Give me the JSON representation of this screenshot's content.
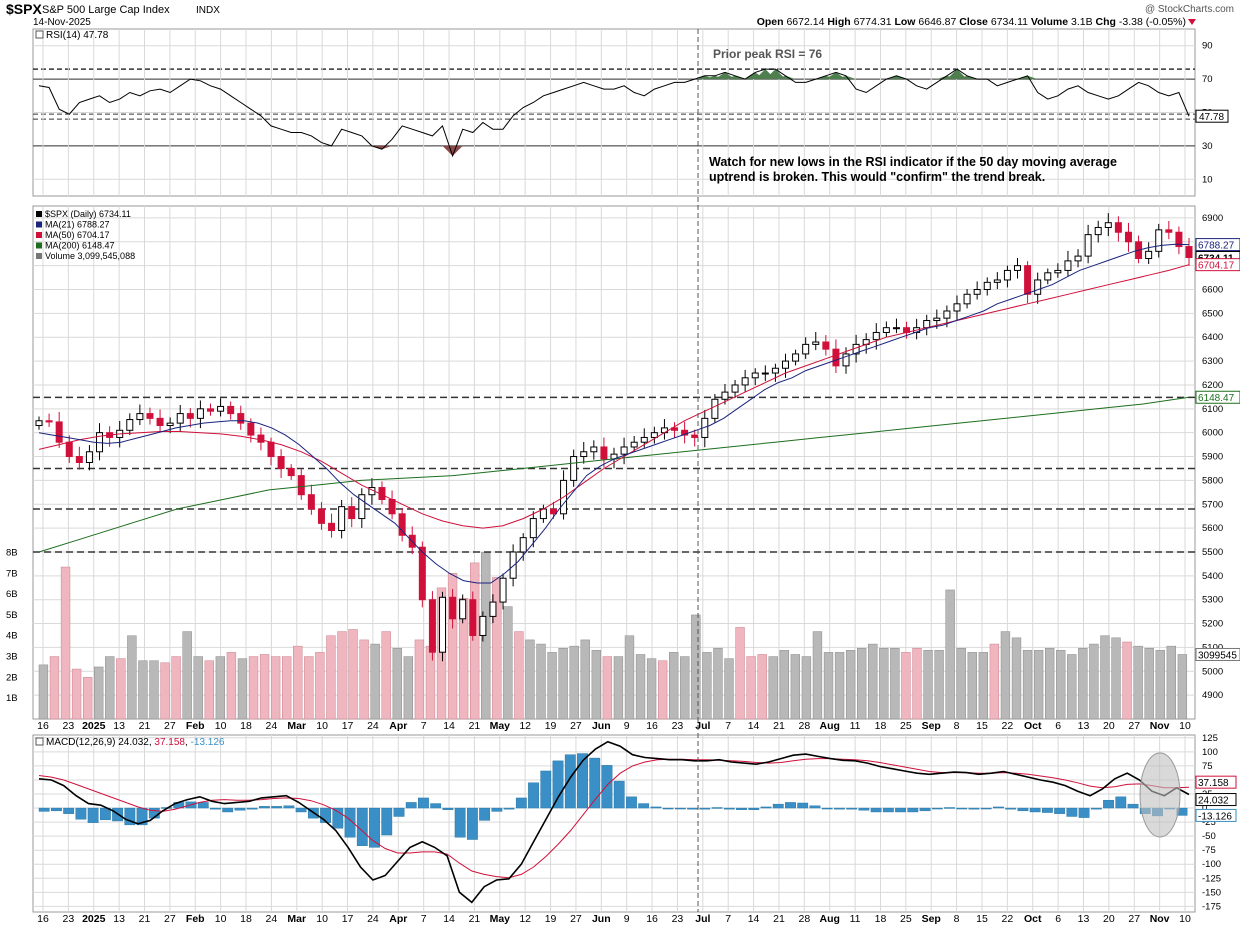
{
  "header": {
    "symbol": "$SPX",
    "name": "S&P 500 Large Cap Index",
    "exchange": "INDX",
    "date": "14-Nov-2025",
    "watermark": "@ StockCharts.com",
    "open_label": "Open",
    "open": "6672.14",
    "high_label": "High",
    "high": "6774.31",
    "low_label": "Low",
    "low": "6646.87",
    "close_label": "Close",
    "close": "6734.11",
    "volume_label": "Volume",
    "volume": "3.1B",
    "chg_label": "Chg",
    "chg": "-3.38 (-0.05%)"
  },
  "annotations": {
    "prior_peak": "Prior peak RSI = 76",
    "watch_line1": "Watch for new lows in the RSI indicator if the 50 day moving average",
    "watch_line2": "uptrend is broken. This would \"confirm\" the trend break."
  },
  "colors": {
    "grid": "#d9d9d9",
    "up": "#000000",
    "down": "#d0103a",
    "ma21": "#1a237e",
    "ma50": "#d0103a",
    "ma200": "#1e6e1e",
    "macd_hist": "#3a8fc6",
    "rsi_fill": "#4f7f4f",
    "vol_gray": "#b8b8b8",
    "vol_red": "#f0b6bf"
  },
  "chart_data": [
    {
      "type": "line",
      "title": "RSI(14) 47.78",
      "legend": "RSI(14)",
      "legend_value": "47.78",
      "last_label": "47.78",
      "ylim": [
        0,
        100
      ],
      "yticks": [
        "90",
        "70",
        "50",
        "30",
        "10"
      ],
      "levels": [
        76,
        70,
        49,
        46,
        30
      ],
      "series": [
        {
          "name": "RSI(14)",
          "values": [
            66,
            65,
            52,
            49,
            56,
            58,
            60,
            56,
            58,
            62,
            60,
            63,
            64,
            62,
            66,
            70,
            69,
            66,
            64,
            60,
            56,
            52,
            48,
            42,
            40,
            38,
            38,
            36,
            32,
            30,
            40,
            38,
            36,
            30,
            28,
            34,
            42,
            40,
            38,
            36,
            42,
            24,
            40,
            38,
            44,
            40,
            40,
            48,
            53,
            56,
            60,
            62,
            64,
            66,
            68,
            66,
            64,
            64,
            66,
            62,
            60,
            64,
            66,
            68,
            68,
            70,
            72,
            72,
            74,
            72,
            70,
            74,
            76,
            76,
            72,
            68,
            68,
            70,
            72,
            74,
            72,
            64,
            62,
            66,
            70,
            72,
            70,
            66,
            64,
            68,
            72,
            76,
            72,
            70,
            70,
            66,
            68,
            70,
            72,
            62,
            58,
            60,
            64,
            66,
            62,
            60,
            58,
            60,
            64,
            68,
            66,
            62,
            60,
            62,
            47.78
          ]
        }
      ]
    },
    {
      "type": "candlestick",
      "title": "$SPX (Daily) 6734.11",
      "legend": [
        {
          "name": "$SPX (Daily)",
          "value": "6734.11"
        },
        {
          "name": "MA(21)",
          "value": "6788.27"
        },
        {
          "name": "MA(50)",
          "value": "6704.17"
        },
        {
          "name": "MA(200)",
          "value": "6148.47"
        },
        {
          "name": "Volume",
          "value": "3,099,545,088"
        }
      ],
      "ylim": [
        4800,
        6950
      ],
      "yticks": [
        "6900",
        "6800",
        "6700",
        "6600",
        "6500",
        "6400",
        "6300",
        "6200",
        "6100",
        "6000",
        "5900",
        "5800",
        "5700",
        "5600",
        "5500",
        "5400",
        "5300",
        "5200",
        "5100",
        "5000",
        "4900"
      ],
      "volume_ticks": [
        "8B",
        "7B",
        "6B",
        "5B",
        "4B",
        "3B",
        "2B",
        "1B"
      ],
      "support_levels": [
        6148,
        5850,
        5680,
        5500
      ],
      "right_labels": {
        "ma21": "6788.27",
        "close": "6734.11",
        "ma50": "6704.17",
        "ma200": "6148.47",
        "volume": "3099545"
      },
      "series": [
        {
          "name": "Close",
          "values": [
            6050,
            6045,
            5960,
            5900,
            5875,
            5920,
            6000,
            5980,
            6010,
            6055,
            6080,
            6060,
            6030,
            6040,
            6080,
            6060,
            6100,
            6090,
            6110,
            6080,
            6040,
            5990,
            5960,
            5900,
            5850,
            5820,
            5740,
            5680,
            5620,
            5590,
            5690,
            5640,
            5740,
            5770,
            5720,
            5660,
            5570,
            5520,
            5300,
            5080,
            5310,
            5220,
            5300,
            5150,
            5230,
            5290,
            5390,
            5500,
            5560,
            5640,
            5680,
            5660,
            5800,
            5900,
            5920,
            5940,
            5890,
            5910,
            5940,
            5960,
            5980,
            6000,
            6020,
            6010,
            5990,
            5980,
            6060,
            6140,
            6170,
            6200,
            6230,
            6250,
            6250,
            6270,
            6300,
            6330,
            6370,
            6380,
            6350,
            6280,
            6330,
            6370,
            6390,
            6420,
            6440,
            6440,
            6420,
            6440,
            6470,
            6480,
            6510,
            6540,
            6580,
            6600,
            6630,
            6640,
            6680,
            6700,
            6580,
            6640,
            6670,
            6680,
            6720,
            6740,
            6830,
            6860,
            6880,
            6840,
            6800,
            6730,
            6760,
            6850,
            6840,
            6780,
            6734.11
          ]
        },
        {
          "name": "MA(21)",
          "values": [
            6000,
            5990,
            5980,
            5970,
            5960,
            5955,
            5960,
            5975,
            5990,
            6005,
            6020,
            6030,
            6040,
            6045,
            6050,
            6050,
            6040,
            6020,
            5990,
            5950,
            5900,
            5850,
            5790,
            5740,
            5700,
            5660,
            5620,
            5560,
            5500,
            5450,
            5410,
            5380,
            5370,
            5370,
            5410,
            5460,
            5530,
            5600,
            5680,
            5750,
            5820,
            5860,
            5890,
            5910,
            5930,
            5950,
            5970,
            5990,
            6010,
            6030,
            6060,
            6100,
            6140,
            6180,
            6210,
            6230,
            6260,
            6280,
            6300,
            6320,
            6340,
            6360,
            6380,
            6400,
            6420,
            6440,
            6450,
            6470,
            6490,
            6510,
            6540,
            6560,
            6580,
            6600,
            6620,
            6650,
            6680,
            6700,
            6720,
            6740,
            6760,
            6775,
            6785,
            6790,
            6788.27
          ]
        },
        {
          "name": "MA(50)",
          "values": [
            5930,
            5950,
            5970,
            5985,
            5995,
            6000,
            6005,
            6005,
            6000,
            5995,
            5985,
            5970,
            5950,
            5920,
            5880,
            5830,
            5780,
            5740,
            5700,
            5660,
            5630,
            5610,
            5600,
            5610,
            5640,
            5680,
            5730,
            5790,
            5850,
            5900,
            5950,
            6000,
            6050,
            6090,
            6130,
            6170,
            6210,
            6250,
            6280,
            6310,
            6340,
            6370,
            6400,
            6420,
            6440,
            6460,
            6480,
            6500,
            6520,
            6540,
            6560,
            6580,
            6600,
            6620,
            6640,
            6660,
            6680,
            6704.17
          ]
        },
        {
          "name": "MA(200)",
          "values": [
            5500,
            5560,
            5620,
            5680,
            5720,
            5760,
            5780,
            5800,
            5810,
            5820,
            5840,
            5860,
            5880,
            5900,
            5920,
            5940,
            5960,
            5980,
            6000,
            6020,
            6040,
            6060,
            6080,
            6100,
            6120,
            6148.47
          ]
        },
        {
          "name": "Volume (B)",
          "values": [
            2.6,
            3.0,
            7.3,
            2.4,
            2.0,
            2.5,
            3.0,
            2.9,
            4.0,
            2.8,
            2.8,
            2.7,
            3.0,
            4.2,
            3.0,
            2.8,
            3.0,
            3.2,
            2.9,
            3.0,
            3.1,
            3.0,
            3.0,
            3.5,
            3.0,
            3.2,
            4.0,
            4.2,
            4.3,
            3.8,
            3.6,
            4.2,
            3.4,
            3.0,
            3.8,
            3.5,
            6.3,
            7.0,
            5.8,
            7.5,
            8.0,
            6.8,
            5.4,
            4.2,
            3.8,
            3.6,
            3.2,
            3.4,
            3.5,
            3.8,
            3.3,
            3.0,
            3.0,
            4.0,
            3.1,
            2.9,
            2.8,
            3.2,
            3.0,
            5.0,
            3.2,
            3.4,
            2.9,
            4.4,
            3.0,
            3.1,
            3.0,
            3.3,
            3.1,
            3.0,
            4.2,
            3.2,
            3.2,
            3.3,
            3.4,
            3.6,
            3.4,
            3.4,
            3.2,
            3.4,
            3.3,
            3.3,
            6.2,
            3.4,
            3.2,
            3.2,
            3.6,
            4.2,
            3.9,
            3.3,
            3.3,
            3.4,
            3.3,
            3.1,
            3.4,
            3.6,
            4.0,
            3.9,
            3.7,
            3.5,
            3.4,
            3.3,
            3.5,
            3.1
          ]
        }
      ]
    },
    {
      "type": "line",
      "title": "MACD(12,26,9) 24.032, 37.158, -13.126",
      "legend": "MACD(12,26,9)",
      "legend_values": [
        "24.032",
        "37.158",
        "-13.126"
      ],
      "ylim": [
        -185,
        130
      ],
      "yticks": [
        "125",
        "100",
        "75",
        "50",
        "25",
        "0",
        "-25",
        "-50",
        "-75",
        "-100",
        "-125",
        "-150",
        "-175"
      ],
      "right_labels": [
        "37.158",
        "24.032",
        "-13.126"
      ],
      "series": [
        {
          "name": "MACD",
          "values": [
            52,
            50,
            40,
            22,
            8,
            5,
            -5,
            -20,
            -28,
            -22,
            -5,
            8,
            15,
            20,
            12,
            8,
            10,
            12,
            18,
            20,
            22,
            10,
            -5,
            -20,
            -40,
            -70,
            -105,
            -128,
            -120,
            -95,
            -70,
            -60,
            -70,
            -85,
            -150,
            -168,
            -140,
            -128,
            -126,
            -100,
            -60,
            -20,
            20,
            55,
            85,
            105,
            118,
            110,
            95,
            90,
            88,
            86,
            86,
            84,
            84,
            86,
            82,
            80,
            78,
            82,
            88,
            94,
            96,
            92,
            88,
            85,
            84,
            80,
            74,
            70,
            66,
            62,
            60,
            62,
            64,
            63,
            60,
            62,
            65,
            60,
            55,
            50,
            46,
            40,
            30,
            22,
            34,
            52,
            62,
            50,
            30,
            22,
            36,
            24.032
          ]
        },
        {
          "name": "Signal",
          "values": [
            58,
            55,
            50,
            42,
            34,
            26,
            18,
            10,
            2,
            -4,
            -6,
            -2,
            4,
            10,
            14,
            15,
            14,
            14,
            15,
            17,
            18,
            17,
            13,
            6,
            -4,
            -18,
            -38,
            -58,
            -72,
            -80,
            -80,
            -78,
            -78,
            -82,
            -98,
            -112,
            -118,
            -122,
            -124,
            -118,
            -105,
            -86,
            -64,
            -40,
            -12,
            16,
            42,
            62,
            75,
            82,
            86,
            87,
            87,
            86,
            86,
            85,
            84,
            83,
            81,
            80,
            81,
            84,
            87,
            88,
            88,
            87,
            86,
            84,
            81,
            77,
            73,
            69,
            65,
            63,
            63,
            63,
            62,
            62,
            63,
            62,
            60,
            57,
            54,
            50,
            45,
            39,
            36,
            38,
            42,
            43,
            40,
            36,
            36,
            37.158
          ]
        },
        {
          "name": "Histogram",
          "values": [
            -6,
            -5,
            -10,
            -20,
            -26,
            -21,
            -23,
            -30,
            -30,
            -18,
            1,
            10,
            11,
            10,
            -2,
            -7,
            -4,
            -2,
            3,
            3,
            4,
            -7,
            -18,
            -26,
            -36,
            -52,
            -67,
            -70,
            -48,
            -15,
            10,
            18,
            8,
            -3,
            -52,
            -56,
            -22,
            -6,
            -2,
            18,
            45,
            66,
            84,
            95,
            97,
            89,
            76,
            48,
            20,
            8,
            2,
            -1,
            -1,
            -2,
            -2,
            1,
            -2,
            -3,
            -3,
            2,
            7,
            10,
            9,
            4,
            0,
            -2,
            -2,
            -4,
            -7,
            -7,
            -7,
            -7,
            -5,
            -1,
            1,
            0,
            -2,
            0,
            2,
            -2,
            -5,
            -7,
            -8,
            -10,
            -15,
            -17,
            -2,
            14,
            20,
            7,
            -10,
            -14,
            0,
            -13.126
          ]
        }
      ]
    }
  ],
  "x_axis": {
    "labels": [
      "16",
      "23",
      "2025",
      "13",
      "21",
      "27",
      "Feb",
      "10",
      "18",
      "24",
      "Mar",
      "10",
      "17",
      "24",
      "Apr",
      "7",
      "14",
      "21",
      "May",
      "12",
      "19",
      "27",
      "Jun",
      "9",
      "16",
      "23",
      "Jul",
      "7",
      "14",
      "21",
      "28",
      "Aug",
      "11",
      "18",
      "25",
      "Sep",
      "8",
      "15",
      "22",
      "Oct",
      "6",
      "13",
      "20",
      "27",
      "Nov",
      "10"
    ]
  }
}
